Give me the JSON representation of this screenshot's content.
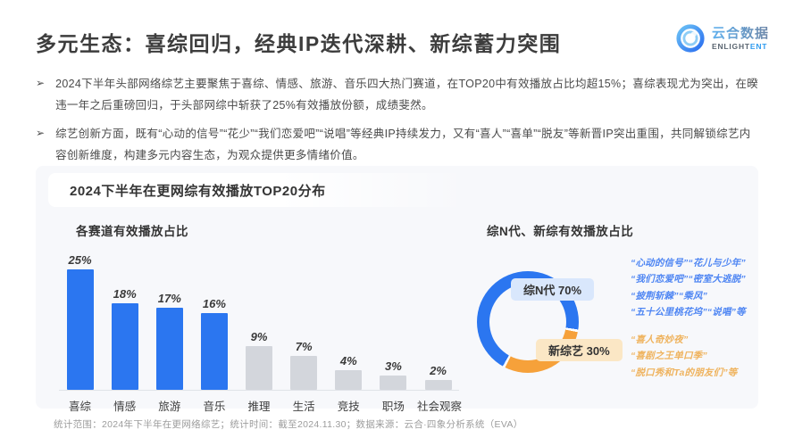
{
  "slide": {
    "title": "多元生态：喜综回归，经典IP迭代深耕、新综蓄力突围",
    "logo": {
      "cn": "云合数据",
      "en_main": "ENLIGHT",
      "en_accent": "ENT"
    },
    "bullet_marker": "➢",
    "bullets": [
      "2024下半年头部网络综艺主要聚焦于喜综、情感、旅游、音乐四大热门赛道，在TOP20中有效播放占比均超15%；喜综表现尤为突出，在暌违一年之后重磅回归，于头部网综中斩获了25%有效播放份额，成绩斐然。",
      "综艺创新方面，既有“心动的信号”“花少”“我们恋爱吧”“说唱”等经典IP持续发力，又有“喜人”“喜单”“脱友”等新晋IP突出重围，共同解锁综艺内容创新维度，构建多元内容生态，为观众提供更多情绪价值。"
    ],
    "panel_title": "2024下半年在更网综有效播放TOP20分布",
    "footer": "统计范围：2024年下半年在更网络综艺；统计时间：截至2024.11.30；数据来源：云合·四象分析系统（EVA）"
  },
  "chart_data": [
    {
      "type": "bar",
      "title": "各赛道有效播放占比",
      "categories": [
        "喜综",
        "情感",
        "旅游",
        "音乐",
        "推理",
        "生活",
        "竞技",
        "职场",
        "社会观察"
      ],
      "values": [
        25,
        18,
        17,
        16,
        9,
        7,
        4,
        3,
        2
      ],
      "unit": "%",
      "ylim": [
        0,
        27
      ],
      "grid": false,
      "highlight_count": 4,
      "colors": {
        "highlight": "#2b76f0",
        "default": "#d3d6dc"
      },
      "value_label_style": "bold-italic-above-bar"
    },
    {
      "type": "pie",
      "title": "综N代、新综有效播放占比",
      "style": "donut-ring",
      "rotation_deg": 100,
      "slices": [
        {
          "label": "综N代",
          "value": 70,
          "color": "#2b76f0"
        },
        {
          "label": "新综艺",
          "value": 30,
          "color": "#f6a13a"
        }
      ],
      "labels": [
        "综N代 70%",
        "新综艺 30%"
      ],
      "label_bg": {
        "blue": "#d9e7fc",
        "orange": "#fbe7c5"
      }
    }
  ],
  "annotations": {
    "blue_lines": [
      "“心动的信号”“花儿与少年”",
      "“我们恋爱吧”“密室大逃脱”",
      "“披荆斩棘”“乘风”",
      "“五十公里桃花坞”“说唱”等"
    ],
    "orange_lines": [
      "“喜人奇妙夜”",
      "“喜剧之王单口季”",
      "“脱口秀和Ta的朋友们”等"
    ]
  }
}
